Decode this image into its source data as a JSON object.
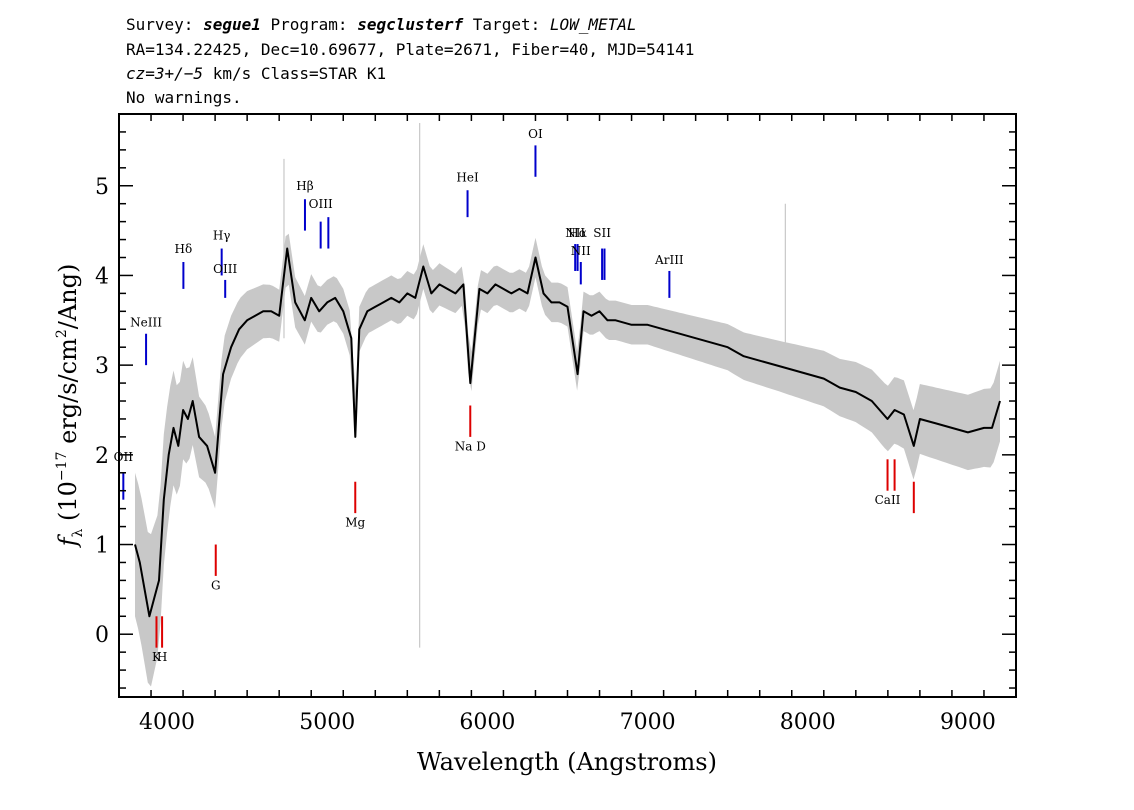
{
  "header": {
    "line1": {
      "survey_label": "Survey: ",
      "survey_value": "segue1",
      "program_label": " Program: ",
      "program_value": "segclusterf",
      "target_label": " Target: ",
      "target_value": "LOW_METAL"
    },
    "line2": "RA=134.22425, Dec=10.69677, Plate=2671, Fiber=40, MJD=54141",
    "line3": {
      "cz_label": "cz",
      "cz_value": "=3+/−5",
      "rest": " km/s Class=STAR K1"
    },
    "line4": "No warnings."
  },
  "colors": {
    "flux": "#000000",
    "error_band": "#c8c8c8",
    "emission_line": "#0000cc",
    "absorption_line": "#dd0000"
  },
  "chart_data": {
    "type": "line",
    "title": "",
    "xlabel": "Wavelength (Angstroms)",
    "ylabel": "f_λ (10^-17 erg/s/cm^2/Ang)",
    "ylabel_parts": {
      "symbol": "f",
      "symbol_sub": "λ",
      "open": " (10",
      "exp": "−17",
      "mid": " erg/s/cm",
      "exp2": "2",
      "close": "/Ang)"
    },
    "xlim": [
      3700,
      9300
    ],
    "ylim": [
      -0.7,
      5.8
    ],
    "x_ticks": [
      4000,
      5000,
      6000,
      7000,
      8000,
      9000
    ],
    "x_tick_labels": [
      "4000",
      "5000",
      "6000",
      "7000",
      "8000",
      "9000"
    ],
    "y_ticks": [
      0,
      1,
      2,
      3,
      4,
      5
    ],
    "y_tick_labels": [
      "0",
      "1",
      "2",
      "3",
      "4",
      "5"
    ],
    "x_minor_step": 200,
    "y_minor_step": 0.2,
    "grid": false,
    "series": [
      {
        "role": "flux",
        "x": [
          3800,
          3830,
          3860,
          3890,
          3920,
          3950,
          3980,
          4010,
          4040,
          4070,
          4100,
          4130,
          4160,
          4200,
          4250,
          4300,
          4350,
          4400,
          4450,
          4500,
          4550,
          4600,
          4650,
          4700,
          4750,
          4800,
          4860,
          4900,
          4950,
          5000,
          5050,
          5100,
          5150,
          5175,
          5200,
          5250,
          5300,
          5350,
          5400,
          5450,
          5500,
          5550,
          5600,
          5650,
          5700,
          5750,
          5800,
          5850,
          5893,
          5950,
          6000,
          6050,
          6100,
          6150,
          6200,
          6250,
          6300,
          6350,
          6400,
          6450,
          6500,
          6563,
          6600,
          6650,
          6700,
          6750,
          6800,
          6900,
          7000,
          7100,
          7200,
          7300,
          7400,
          7500,
          7600,
          7700,
          7800,
          7900,
          8000,
          8100,
          8200,
          8300,
          8400,
          8498,
          8542,
          8600,
          8662,
          8700,
          8800,
          8900,
          9000,
          9100,
          9150,
          9200
        ],
        "y": [
          1.0,
          0.8,
          0.5,
          0.2,
          0.4,
          0.6,
          1.5,
          2.0,
          2.3,
          2.1,
          2.5,
          2.4,
          2.6,
          2.2,
          2.1,
          1.8,
          2.9,
          3.2,
          3.4,
          3.5,
          3.55,
          3.6,
          3.6,
          3.55,
          4.3,
          3.7,
          3.5,
          3.75,
          3.6,
          3.7,
          3.75,
          3.6,
          3.3,
          2.2,
          3.4,
          3.6,
          3.65,
          3.7,
          3.75,
          3.7,
          3.8,
          3.75,
          4.1,
          3.8,
          3.9,
          3.85,
          3.8,
          3.9,
          2.8,
          3.85,
          3.8,
          3.9,
          3.85,
          3.8,
          3.85,
          3.8,
          4.2,
          3.8,
          3.7,
          3.7,
          3.65,
          2.9,
          3.6,
          3.55,
          3.6,
          3.5,
          3.5,
          3.45,
          3.45,
          3.4,
          3.35,
          3.3,
          3.25,
          3.2,
          3.1,
          3.05,
          3.0,
          2.95,
          2.9,
          2.85,
          2.75,
          2.7,
          2.6,
          2.4,
          2.5,
          2.45,
          2.1,
          2.4,
          2.35,
          2.3,
          2.25,
          2.3,
          2.3,
          2.6
        ]
      }
    ],
    "error_band": {
      "x": [
        3800,
        3900,
        4000,
        4100,
        4200,
        4300,
        4400,
        4600,
        4800,
        5000,
        5200,
        5400,
        5600,
        5800,
        6000,
        6200,
        6400,
        6600,
        6800,
        7000,
        7400,
        7800,
        8200,
        8600,
        9000,
        9200
      ],
      "half_width": [
        0.8,
        0.85,
        0.7,
        0.55,
        0.45,
        0.4,
        0.35,
        0.3,
        0.28,
        0.25,
        0.25,
        0.25,
        0.25,
        0.22,
        0.22,
        0.22,
        0.22,
        0.22,
        0.22,
        0.22,
        0.25,
        0.28,
        0.32,
        0.38,
        0.42,
        0.45
      ]
    },
    "spikes": [
      {
        "x": 5577,
        "y_low": -0.15,
        "y_high": 5.7
      },
      {
        "x": 4730,
        "y_low": 3.3,
        "y_high": 5.3
      },
      {
        "x": 7860,
        "y_low": 3.0,
        "y_high": 4.8
      }
    ],
    "line_markers": [
      {
        "label": "OII",
        "x": 3727,
        "y_low": 1.5,
        "y_high": 1.8,
        "kind": "emission",
        "label_y": 1.93
      },
      {
        "label": "NeIII",
        "x": 3869,
        "y_low": 3.0,
        "y_high": 3.35,
        "kind": "emission",
        "label_y": 3.43
      },
      {
        "label": "Hδ",
        "x": 4102,
        "y_low": 3.85,
        "y_high": 4.15,
        "kind": "emission",
        "label_y": 4.25
      },
      {
        "label": "Hγ",
        "x": 4341,
        "y_low": 4.0,
        "y_high": 4.3,
        "kind": "emission",
        "label_y": 4.4
      },
      {
        "label": "OIII",
        "x": 4363,
        "y_low": 3.75,
        "y_high": 3.95,
        "kind": "emission",
        "label_y": 4.03
      },
      {
        "label": "Hβ",
        "x": 4861,
        "y_low": 4.5,
        "y_high": 4.85,
        "kind": "emission",
        "label_y": 4.95
      },
      {
        "label": "OIII",
        "x": 4959,
        "y_low": 4.3,
        "y_high": 4.6,
        "kind": "emission",
        "label_y": 4.75
      },
      {
        "label": "",
        "x": 5007,
        "y_low": 4.3,
        "y_high": 4.65,
        "kind": "emission",
        "label_y": 0
      },
      {
        "label": "HeI",
        "x": 5876,
        "y_low": 4.65,
        "y_high": 4.95,
        "kind": "emission",
        "label_y": 5.05
      },
      {
        "label": "OI",
        "x": 6300,
        "y_low": 5.1,
        "y_high": 5.45,
        "kind": "emission",
        "label_y": 5.53
      },
      {
        "label": "NII",
        "x": 6548,
        "y_low": 4.05,
        "y_high": 4.35,
        "kind": "emission",
        "label_y": 4.43
      },
      {
        "label": "Hα",
        "x": 6563,
        "y_low": 4.05,
        "y_high": 4.35,
        "kind": "emission",
        "label_y": 4.43
      },
      {
        "label": "NII",
        "x": 6583,
        "y_low": 3.9,
        "y_high": 4.15,
        "kind": "emission",
        "label_y": 4.23
      },
      {
        "label": "SII",
        "x": 6716,
        "y_low": 3.95,
        "y_high": 4.3,
        "kind": "emission",
        "label_y": 4.43
      },
      {
        "label": "",
        "x": 6731,
        "y_low": 3.95,
        "y_high": 4.3,
        "kind": "emission",
        "label_y": 0
      },
      {
        "label": "ArIII",
        "x": 7136,
        "y_low": 3.75,
        "y_high": 4.05,
        "kind": "emission",
        "label_y": 4.13
      },
      {
        "label": "K",
        "x": 3934,
        "y_low": -0.15,
        "y_high": 0.2,
        "kind": "absorption",
        "label_y": -0.3
      },
      {
        "label": "H",
        "x": 3969,
        "y_low": -0.15,
        "y_high": 0.2,
        "kind": "absorption",
        "label_y": -0.3
      },
      {
        "label": "G",
        "x": 4304,
        "y_low": 0.65,
        "y_high": 1.0,
        "kind": "absorption",
        "label_y": 0.5
      },
      {
        "label": "Mg",
        "x": 5175,
        "y_low": 1.35,
        "y_high": 1.7,
        "kind": "absorption",
        "label_y": 1.2
      },
      {
        "label": "Na D",
        "x": 5893,
        "y_low": 2.2,
        "y_high": 2.55,
        "kind": "absorption",
        "label_y": 2.05
      },
      {
        "label": "CaII",
        "x": 8498,
        "y_low": 1.6,
        "y_high": 1.95,
        "kind": "absorption",
        "label_y": 1.45
      },
      {
        "label": "",
        "x": 8542,
        "y_low": 1.6,
        "y_high": 1.95,
        "kind": "absorption",
        "label_y": 0
      },
      {
        "label": "",
        "x": 8662,
        "y_low": 1.35,
        "y_high": 1.7,
        "kind": "absorption",
        "label_y": 0
      }
    ]
  }
}
